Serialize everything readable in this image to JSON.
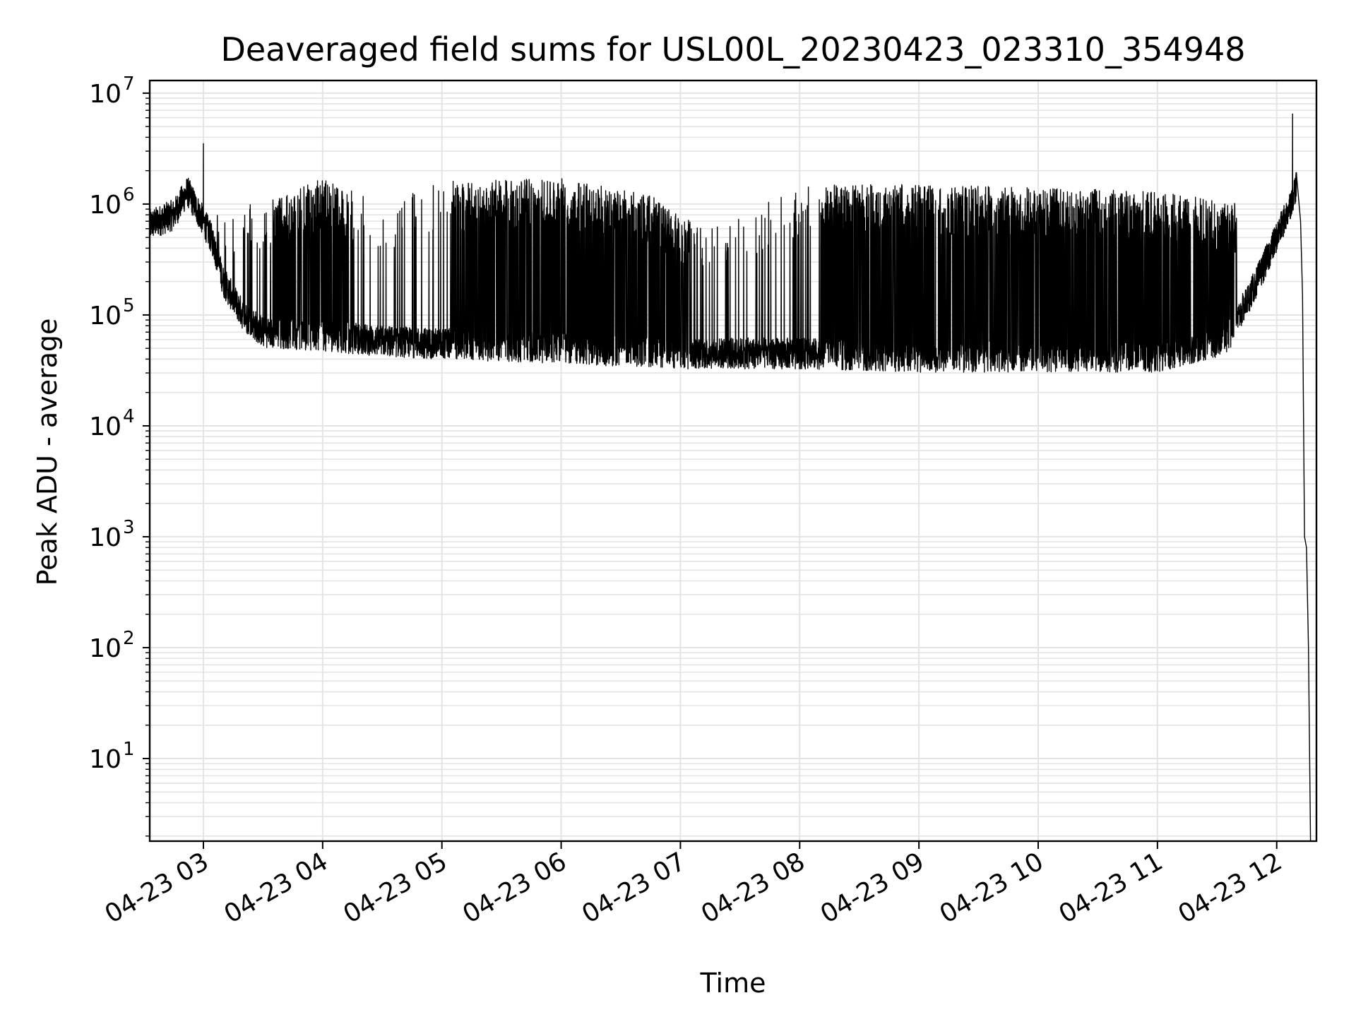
{
  "chart_data": {
    "type": "line",
    "title": "Deaveraged field sums for USL00L_20230423_023310_354948",
    "xlabel": "Time",
    "ylabel": "Peak ADU - average",
    "yscale": "log",
    "xlim": [
      "04-23 02:33",
      "04-23 12:20"
    ],
    "ylim": [
      1.8,
      13000000
    ],
    "grid": true,
    "x_ticks": [
      "04-23 03",
      "04-23 04",
      "04-23 05",
      "04-23 06",
      "04-23 07",
      "04-23 08",
      "04-23 09",
      "04-23 10",
      "04-23 11",
      "04-23 12"
    ],
    "y_ticks": [
      {
        "base": "10",
        "exp": "1"
      },
      {
        "base": "10",
        "exp": "2"
      },
      {
        "base": "10",
        "exp": "3"
      },
      {
        "base": "10",
        "exp": "4"
      },
      {
        "base": "10",
        "exp": "5"
      },
      {
        "base": "10",
        "exp": "6"
      },
      {
        "base": "10",
        "exp": "7"
      }
    ],
    "series": [
      {
        "color": "#000000",
        "baseline": [
          {
            "x": "04-23 02:33",
            "y": 650000
          },
          {
            "x": "04-23 02:45",
            "y": 800000
          },
          {
            "x": "04-23 02:52",
            "y": 1300000
          },
          {
            "x": "04-23 03:00",
            "y": 700000
          },
          {
            "x": "04-23 03:05",
            "y": 450000
          },
          {
            "x": "04-23 03:10",
            "y": 200000
          },
          {
            "x": "04-23 03:20",
            "y": 100000
          },
          {
            "x": "04-23 03:30",
            "y": 70000
          },
          {
            "x": "04-23 04:00",
            "y": 65000
          },
          {
            "x": "04-23 04:30",
            "y": 58000
          },
          {
            "x": "04-23 05:00",
            "y": 55000
          },
          {
            "x": "04-23 06:00",
            "y": 50000
          },
          {
            "x": "04-23 07:00",
            "y": 45000
          },
          {
            "x": "04-23 08:00",
            "y": 45000
          },
          {
            "x": "04-23 09:00",
            "y": 42000
          },
          {
            "x": "04-23 10:00",
            "y": 42000
          },
          {
            "x": "04-23 11:00",
            "y": 42000
          },
          {
            "x": "04-23 11:35",
            "y": 60000
          },
          {
            "x": "04-23 11:50",
            "y": 200000
          },
          {
            "x": "04-23 12:05",
            "y": 800000
          },
          {
            "x": "04-23 12:10",
            "y": 1500000
          }
        ],
        "burst_top": [
          {
            "x": "04-23 03:30",
            "y": 1000000
          },
          {
            "x": "04-23 04:00",
            "y": 1700000
          },
          {
            "x": "04-23 04:30",
            "y": 1000000
          },
          {
            "x": "04-23 05:00",
            "y": 1600000
          },
          {
            "x": "04-23 06:00",
            "y": 1700000
          },
          {
            "x": "04-23 06:45",
            "y": 1200000
          },
          {
            "x": "04-23 07:15",
            "y": 600000
          },
          {
            "x": "04-23 08:00",
            "y": 1500000
          },
          {
            "x": "04-23 09:00",
            "y": 1500000
          },
          {
            "x": "04-23 10:00",
            "y": 1400000
          },
          {
            "x": "04-23 11:00",
            "y": 1300000
          },
          {
            "x": "04-23 11:45",
            "y": 1000000
          }
        ],
        "dense_burst_intervals": [
          [
            "04-23 03:35",
            "04-23 04:15"
          ],
          [
            "04-23 05:05",
            "04-23 07:05"
          ],
          [
            "04-23 08:10",
            "04-23 11:40"
          ]
        ],
        "sparse_burst_intervals": [
          [
            "04-23 03:05",
            "04-23 03:35"
          ],
          [
            "04-23 04:15",
            "04-23 05:05"
          ],
          [
            "04-23 07:05",
            "04-23 08:10"
          ]
        ],
        "peaks": [
          {
            "x": "04-23 03:00",
            "y": 3500000
          },
          {
            "x": "04-23 12:08",
            "y": 6500000
          }
        ],
        "tail": [
          {
            "x": "04-23 12:10",
            "y": 1800000
          },
          {
            "x": "04-23 12:12",
            "y": 700000
          },
          {
            "x": "04-23 12:13",
            "y": 150000
          },
          {
            "x": "04-23 12:14",
            "y": 1000
          },
          {
            "x": "04-23 12:15",
            "y": 800
          },
          {
            "x": "04-23 12:16",
            "y": 100
          },
          {
            "x": "04-23 12:17",
            "y": 1.8
          }
        ]
      }
    ]
  }
}
